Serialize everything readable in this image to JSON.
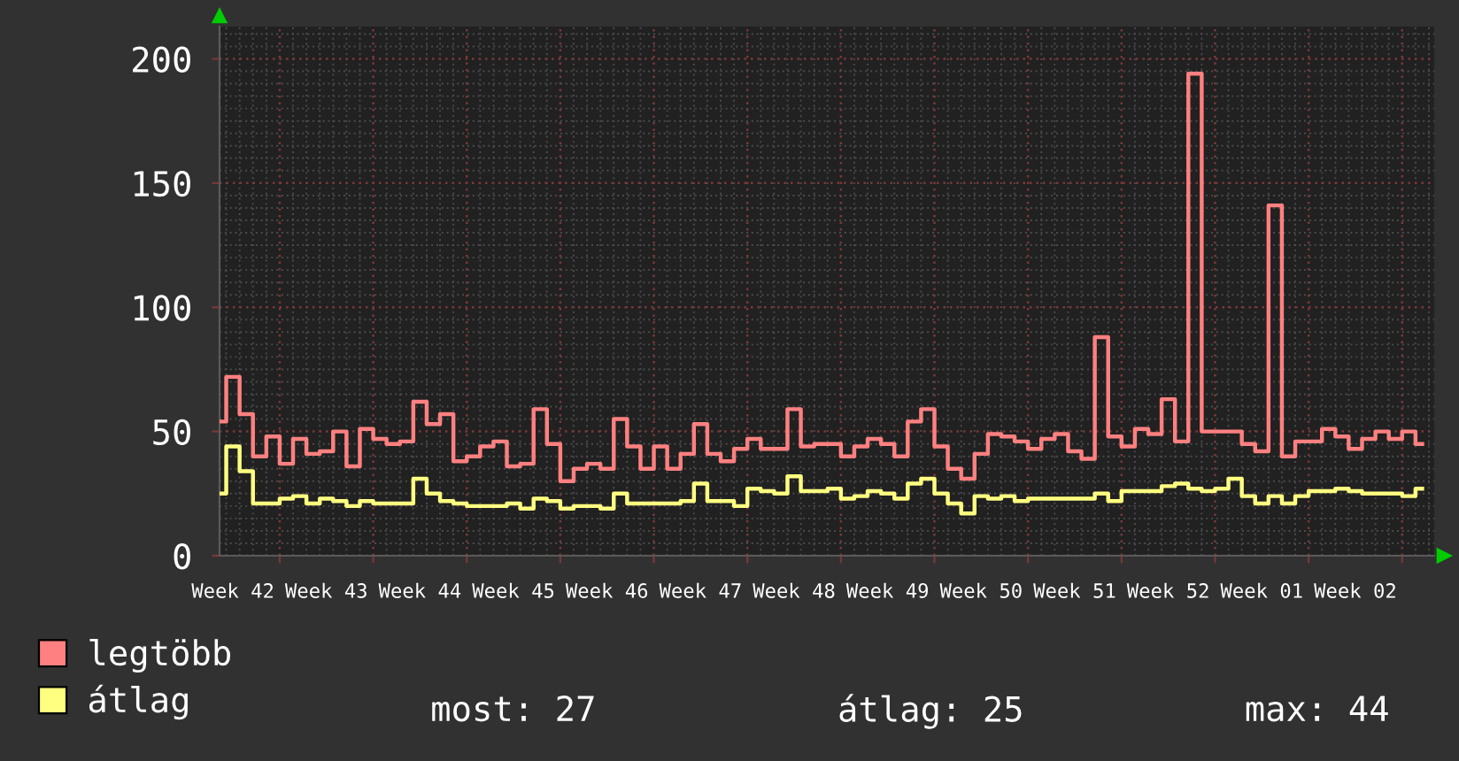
{
  "chart_data": {
    "type": "step",
    "categories": [
      null,
      "Week 42",
      null,
      null,
      null,
      null,
      null,
      null,
      "Week 43",
      null,
      null,
      null,
      null,
      null,
      null,
      "Week 44",
      null,
      null,
      null,
      null,
      null,
      null,
      "Week 45",
      null,
      null,
      null,
      null,
      null,
      null,
      "Week 46",
      null,
      null,
      null,
      null,
      null,
      null,
      "Week 47",
      null,
      null,
      null,
      null,
      null,
      null,
      "Week 48",
      null,
      null,
      null,
      null,
      null,
      null,
      "Week 49",
      null,
      null,
      null,
      null,
      null,
      null,
      "Week 50",
      null,
      null,
      null,
      null,
      null,
      null,
      "Week 51",
      null,
      null,
      null,
      null,
      null,
      null,
      "Week 52",
      null,
      null,
      null,
      null,
      null,
      null,
      "Week 01",
      null,
      null,
      null,
      null,
      null,
      null,
      "Week 02",
      null,
      null,
      null,
      null,
      null
    ],
    "ylim": [
      0,
      213
    ],
    "yticks": [
      0,
      50,
      100,
      150,
      200
    ],
    "grid": true,
    "legend": "bottom",
    "series": [
      {
        "name": "legtöbb",
        "color": "#ff8080",
        "values": [
          54,
          72,
          57,
          40,
          48,
          37,
          47,
          41,
          42,
          50,
          36,
          51,
          47,
          45,
          46,
          62,
          53,
          57,
          38,
          40,
          44,
          46,
          36,
          37,
          59,
          45,
          30,
          35,
          37,
          35,
          55,
          44,
          35,
          44,
          35,
          41,
          53,
          41,
          38,
          43,
          47,
          43,
          43,
          59,
          44,
          45,
          45,
          40,
          44,
          47,
          45,
          40,
          54,
          59,
          44,
          35,
          31,
          41,
          49,
          48,
          46,
          43,
          47,
          49,
          42,
          39,
          88,
          48,
          44,
          51,
          49,
          63,
          46,
          194,
          50,
          50,
          50,
          45,
          42,
          141,
          40,
          46,
          46,
          51,
          48,
          43,
          47,
          50,
          47,
          50,
          45
        ]
      },
      {
        "name": "átlag",
        "color": "#ffff80",
        "values": [
          25,
          44,
          34,
          21,
          21,
          23,
          24,
          21,
          23,
          22,
          20,
          22,
          21,
          21,
          21,
          31,
          25,
          22,
          21,
          20,
          20,
          20,
          21,
          19,
          23,
          22,
          19,
          20,
          20,
          19,
          25,
          21,
          21,
          21,
          21,
          22,
          29,
          22,
          22,
          20,
          27,
          26,
          25,
          32,
          26,
          26,
          27,
          23,
          24,
          26,
          25,
          23,
          29,
          31,
          25,
          21,
          17,
          24,
          23,
          24,
          22,
          23,
          23,
          23,
          23,
          23,
          25,
          22,
          26,
          26,
          26,
          28,
          29,
          27,
          26,
          27,
          31,
          24,
          21,
          24,
          21,
          24,
          26,
          26,
          27,
          26,
          25,
          25,
          25,
          24,
          27
        ]
      }
    ],
    "annotations": [
      "most: 27",
      "átlag: 25",
      "max: 44"
    ]
  }
}
